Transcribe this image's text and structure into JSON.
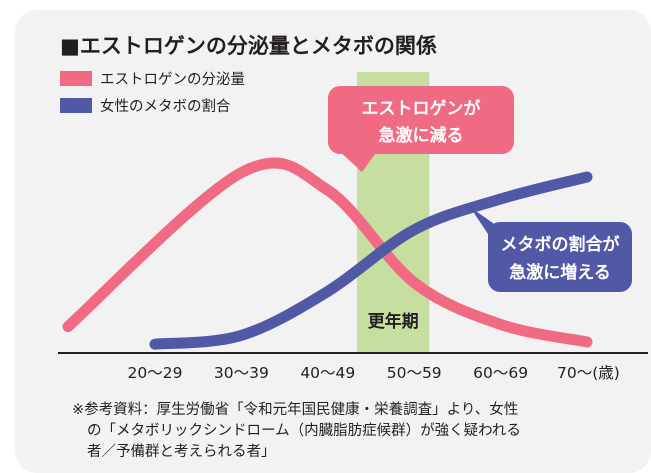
{
  "chart_data": {
    "type": "line",
    "title": "■エストロゲンの分泌量とメタボの関係",
    "categories": [
      "20〜29",
      "30〜39",
      "40〜49",
      "50〜59",
      "60〜69",
      "70〜(歳)"
    ],
    "series": [
      {
        "name": "エストロゲンの分泌量",
        "color": "#f06a84",
        "values": [
          12,
          82,
          74,
          32,
          13,
          5
        ]
      },
      {
        "name": "女性のメタボの割合",
        "color": "#5158a6",
        "values": [
          4,
          8,
          28,
          56,
          70,
          80
        ]
      }
    ],
    "highlight": {
      "label": "更年期",
      "from": "40〜49",
      "to": "50〜59",
      "color": "#c6dea0"
    },
    "callouts": [
      {
        "line1": "エストロゲンが",
        "line2": "急激に減る",
        "color": "#f06a84"
      },
      {
        "line1": "メタボの割合が",
        "line2": "急激に増える",
        "color": "#5158a6"
      }
    ],
    "ylim": [
      0,
      100
    ],
    "grid": false,
    "legend_position": "top-left",
    "background": "#f2f2f2"
  },
  "note": {
    "line1": "※参考資料：厚生労働省「令和元年国民健康・栄養調査」より、女性",
    "line2": "の「メタボリックシンドローム（内臓脂肪症候群）が強く疑われる",
    "line3": "者／予備群と考えられる者」"
  }
}
